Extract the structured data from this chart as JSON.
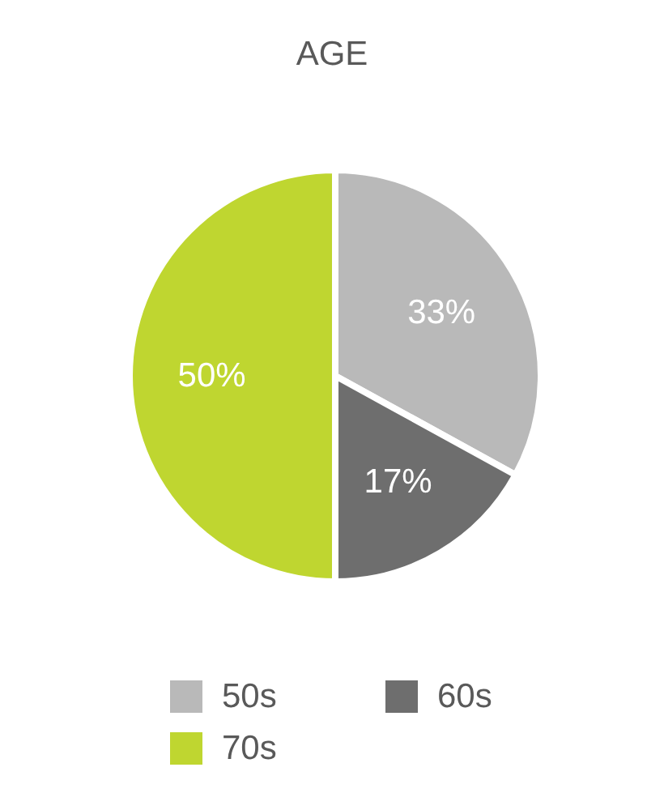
{
  "chart_data": {
    "type": "pie",
    "title": "AGE",
    "categories": [
      "50s",
      "60s",
      "70s"
    ],
    "values": [
      33,
      17,
      50
    ],
    "colors": [
      "#b9b9b9",
      "#6e6e6e",
      "#bfd630"
    ],
    "value_labels": [
      "33%",
      "17%",
      "50%"
    ],
    "legend": "bottom"
  }
}
